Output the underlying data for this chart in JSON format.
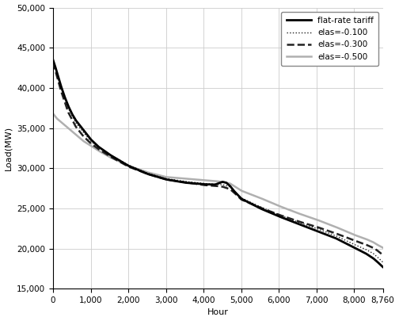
{
  "title": "",
  "xlabel": "Hour",
  "ylabel": "Load(MW)",
  "xlim": [
    0,
    8760
  ],
  "ylim": [
    15000,
    50000
  ],
  "xticks": [
    0,
    1000,
    2000,
    3000,
    4000,
    5000,
    6000,
    7000,
    8000,
    8760
  ],
  "yticks": [
    15000,
    20000,
    25000,
    30000,
    35000,
    40000,
    45000,
    50000
  ],
  "flat_rate_points": [
    [
      0,
      43500
    ],
    [
      50,
      42800
    ],
    [
      100,
      42000
    ],
    [
      150,
      41200
    ],
    [
      200,
      40400
    ],
    [
      300,
      39000
    ],
    [
      400,
      37800
    ],
    [
      500,
      36800
    ],
    [
      600,
      36000
    ],
    [
      700,
      35400
    ],
    [
      800,
      34800
    ],
    [
      900,
      34200
    ],
    [
      1000,
      33600
    ],
    [
      1200,
      32700
    ],
    [
      1500,
      31700
    ],
    [
      2000,
      30300
    ],
    [
      2500,
      29300
    ],
    [
      3000,
      28600
    ],
    [
      3500,
      28200
    ],
    [
      4000,
      28000
    ],
    [
      4300,
      27950
    ],
    [
      4500,
      28300
    ],
    [
      4600,
      28200
    ],
    [
      4700,
      27800
    ],
    [
      4800,
      27200
    ],
    [
      5000,
      26200
    ],
    [
      5500,
      25000
    ],
    [
      6000,
      24000
    ],
    [
      6500,
      23100
    ],
    [
      7000,
      22200
    ],
    [
      7500,
      21300
    ],
    [
      8000,
      20100
    ],
    [
      8300,
      19400
    ],
    [
      8500,
      18800
    ],
    [
      8600,
      18400
    ],
    [
      8760,
      17700
    ]
  ],
  "elas_01_points": [
    [
      0,
      43500
    ],
    [
      100,
      41800
    ],
    [
      200,
      40200
    ],
    [
      400,
      37500
    ],
    [
      600,
      35700
    ],
    [
      800,
      34500
    ],
    [
      1000,
      33400
    ],
    [
      1200,
      32600
    ],
    [
      1500,
      31700
    ],
    [
      2000,
      30400
    ],
    [
      2500,
      29400
    ],
    [
      3000,
      28700
    ],
    [
      3500,
      28350
    ],
    [
      4000,
      28100
    ],
    [
      4300,
      28000
    ],
    [
      4500,
      27950
    ],
    [
      4700,
      27700
    ],
    [
      4800,
      27200
    ],
    [
      5000,
      26300
    ],
    [
      5500,
      25200
    ],
    [
      6000,
      24200
    ],
    [
      6500,
      23300
    ],
    [
      7000,
      22500
    ],
    [
      7500,
      21600
    ],
    [
      8000,
      20500
    ],
    [
      8300,
      19900
    ],
    [
      8500,
      19400
    ],
    [
      8600,
      19000
    ],
    [
      8760,
      18300
    ]
  ],
  "elas_03_points": [
    [
      0,
      43200
    ],
    [
      100,
      41500
    ],
    [
      200,
      39800
    ],
    [
      400,
      37000
    ],
    [
      600,
      35200
    ],
    [
      800,
      34000
    ],
    [
      1000,
      33100
    ],
    [
      1200,
      32400
    ],
    [
      1500,
      31500
    ],
    [
      2000,
      30200
    ],
    [
      2500,
      29300
    ],
    [
      3000,
      28600
    ],
    [
      3500,
      28250
    ],
    [
      4000,
      27900
    ],
    [
      4300,
      27800
    ],
    [
      4500,
      27700
    ],
    [
      4700,
      27400
    ],
    [
      4800,
      27000
    ],
    [
      5000,
      26100
    ],
    [
      5500,
      25100
    ],
    [
      6000,
      24200
    ],
    [
      6500,
      23400
    ],
    [
      7000,
      22700
    ],
    [
      7500,
      21900
    ],
    [
      8000,
      21000
    ],
    [
      8300,
      20500
    ],
    [
      8500,
      20100
    ],
    [
      8600,
      19800
    ],
    [
      8760,
      19200
    ]
  ],
  "elas_05_points": [
    [
      0,
      36800
    ],
    [
      100,
      36200
    ],
    [
      200,
      35800
    ],
    [
      300,
      35400
    ],
    [
      400,
      35000
    ],
    [
      500,
      34600
    ],
    [
      600,
      34200
    ],
    [
      700,
      33800
    ],
    [
      800,
      33400
    ],
    [
      900,
      33100
    ],
    [
      1000,
      32800
    ],
    [
      1200,
      32200
    ],
    [
      1500,
      31400
    ],
    [
      2000,
      30300
    ],
    [
      2500,
      29500
    ],
    [
      3000,
      28900
    ],
    [
      3500,
      28700
    ],
    [
      4000,
      28500
    ],
    [
      4300,
      28400
    ],
    [
      4500,
      28300
    ],
    [
      4700,
      28100
    ],
    [
      4800,
      27800
    ],
    [
      5000,
      27200
    ],
    [
      5500,
      26300
    ],
    [
      6000,
      25300
    ],
    [
      6500,
      24400
    ],
    [
      7000,
      23600
    ],
    [
      7500,
      22700
    ],
    [
      8000,
      21700
    ],
    [
      8300,
      21200
    ],
    [
      8500,
      20800
    ],
    [
      8600,
      20500
    ],
    [
      8760,
      20100
    ]
  ],
  "legend_loc": "upper right",
  "grid": true,
  "background_color": "#ffffff",
  "figsize": [
    5.04,
    4.05
  ],
  "dpi": 100
}
